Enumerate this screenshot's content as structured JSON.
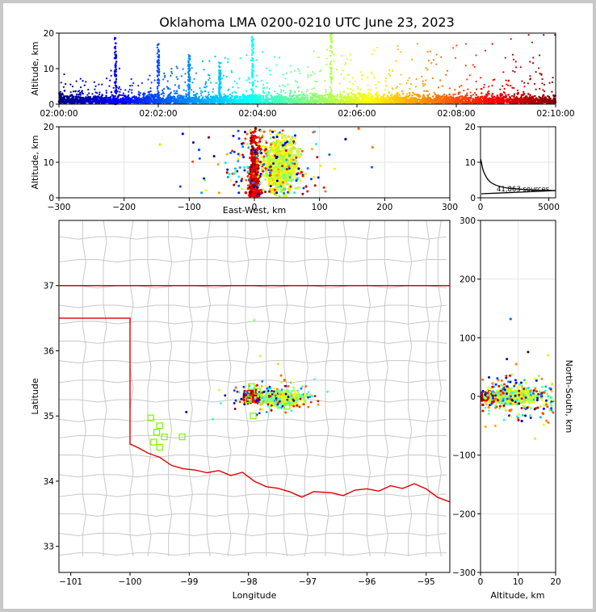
{
  "title": "Oklahoma LMA 0200-0210 UTC June 23, 2023",
  "source_count_label": "41,863 sources",
  "time_panel": {
    "ylabel": "Altitude, km",
    "ylim": [
      0,
      20
    ],
    "yticks": [
      "0",
      "10",
      "20"
    ],
    "xticks": [
      "02:00:00",
      "02:02:00",
      "02:04:00",
      "02:06:00",
      "02:08:00",
      "02:10:00"
    ]
  },
  "ew_panel": {
    "xlabel": "East-West, km",
    "ylabel": "Altitude, km",
    "xlim": [
      -300,
      300
    ],
    "ylim": [
      0,
      20
    ],
    "xticks": [
      "−300",
      "−200",
      "−100",
      "0",
      "100",
      "200",
      "300"
    ],
    "yticks": [
      "0",
      "10",
      "20"
    ]
  },
  "hist_panel": {
    "xlim": [
      0,
      5500
    ],
    "ylim": [
      0,
      20
    ],
    "xticks": [
      "0",
      "5000"
    ],
    "yticks": [
      "0",
      "10",
      "20"
    ]
  },
  "map_panel": {
    "xlabel": "Longitude",
    "ylabel": "Latitude",
    "xlim": [
      -101.2,
      -94.6
    ],
    "ylim": [
      32.6,
      38.0
    ],
    "xticks": [
      "−101",
      "−100",
      "−99",
      "−98",
      "−97",
      "−96",
      "−95"
    ],
    "yticks": [
      "33",
      "34",
      "35",
      "36",
      "37"
    ]
  },
  "ns_panel": {
    "xlabel": "Altitude, km",
    "ylabel": "North-South, km",
    "xlim": [
      0,
      20
    ],
    "ylim": [
      -300,
      300
    ],
    "xticks": [
      "0",
      "10",
      "20"
    ],
    "yticks": [
      "−300",
      "−200",
      "−100",
      "0",
      "100",
      "200",
      "300"
    ]
  },
  "colors": {
    "state_border": "#e00000",
    "county_lines": "#c8c8c8",
    "station_marker": "#7cfc00",
    "colormap": "jet (time)"
  },
  "chart_data": [
    {
      "type": "scatter",
      "panel": "altitude-vs-time",
      "x_range": [
        "02:00:00",
        "02:10:00"
      ],
      "ylim": [
        0,
        20
      ],
      "description_values": {
        "dense_low_altitude_band_km": [
          0,
          3
        ],
        "vertical_flashes_at_min": [
          1.2,
          2.0,
          2.6,
          3.2,
          3.9,
          5.5
        ]
      }
    },
    {
      "type": "scatter",
      "panel": "altitude-vs-east-west",
      "xlim": [
        -300,
        300
      ],
      "ylim": [
        0,
        20
      ],
      "main_cluster_x_km": [
        0,
        100
      ]
    },
    {
      "type": "line",
      "panel": "altitude-histogram",
      "xlim": [
        0,
        5500
      ],
      "ylim": [
        0,
        20
      ],
      "total_sources": 41863
    },
    {
      "type": "scatter",
      "panel": "plan-view",
      "xlim": [
        -101.2,
        -94.6
      ],
      "ylim": [
        32.6,
        38.0
      ],
      "cluster_center": [
        -97.6,
        35.3
      ],
      "stations": [
        [
          -99.65,
          34.97
        ],
        [
          -99.5,
          34.85
        ],
        [
          -99.55,
          34.75
        ],
        [
          -99.42,
          34.68
        ],
        [
          -99.6,
          34.6
        ],
        [
          -99.5,
          34.52
        ],
        [
          -99.12,
          34.68
        ],
        [
          -97.95,
          35.45
        ],
        [
          -97.85,
          35.38
        ],
        [
          -98.0,
          35.25
        ],
        [
          -97.92,
          35.0
        ],
        [
          -97.35,
          35.15
        ]
      ]
    },
    {
      "type": "scatter",
      "panel": "north-south-vs-altitude",
      "xlim": [
        0,
        20
      ],
      "ylim": [
        -300,
        300
      ],
      "main_cluster_y_km": [
        -40,
        40
      ]
    }
  ]
}
